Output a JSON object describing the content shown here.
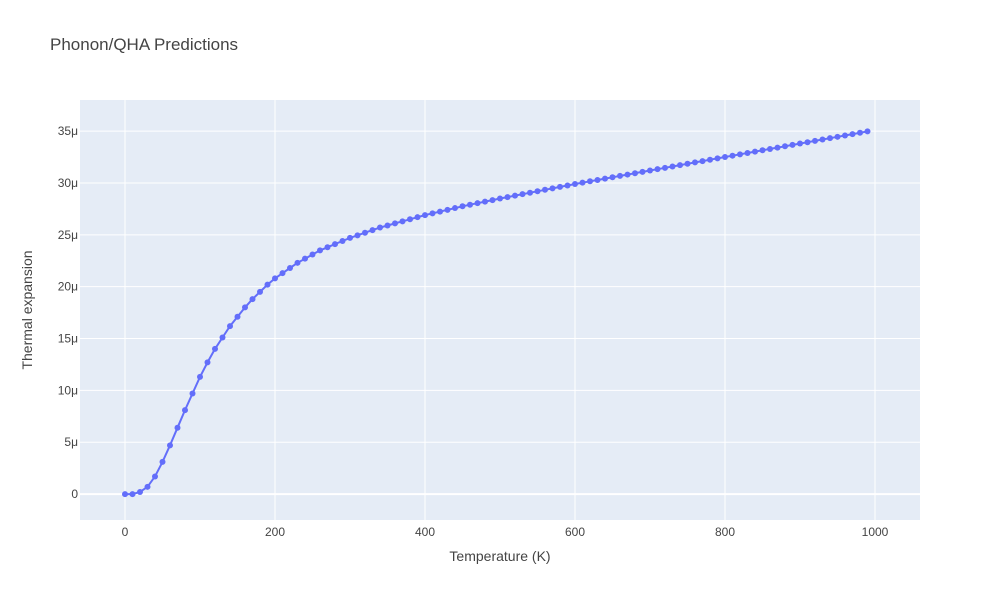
{
  "chart_data": {
    "type": "line",
    "title": "Phonon/QHA Predictions",
    "xlabel": "Temperature (K)",
    "ylabel": "Thermal expansion",
    "xlim": [
      -60,
      1060
    ],
    "ylim": [
      -2.5,
      38
    ],
    "y_unit_suffix": "μ",
    "grid": true,
    "legend": "none",
    "x_ticks": [
      0,
      200,
      400,
      600,
      800,
      1000
    ],
    "x_tick_labels": [
      "0",
      "200",
      "400",
      "600",
      "800",
      "1000"
    ],
    "y_ticks": [
      0,
      5,
      10,
      15,
      20,
      25,
      30,
      35
    ],
    "y_tick_labels": [
      "0",
      "5μ",
      "10μ",
      "15μ",
      "20μ",
      "25μ",
      "30μ",
      "35μ"
    ],
    "colors": {
      "series": "#636efa",
      "plot_bg": "#e5ecf6",
      "grid": "#ffffff",
      "text": "#444444"
    },
    "series": [
      {
        "x": [
          0,
          10,
          20,
          30,
          40,
          50,
          60,
          70,
          80,
          90,
          100,
          110,
          120,
          130,
          140,
          150,
          160,
          170,
          180,
          190,
          200,
          210,
          220,
          230,
          240,
          250,
          260,
          270,
          280,
          290,
          300,
          310,
          320,
          330,
          340,
          350,
          360,
          370,
          380,
          390,
          400,
          410,
          420,
          430,
          440,
          450,
          460,
          470,
          480,
          490,
          500,
          510,
          520,
          530,
          540,
          550,
          560,
          570,
          580,
          590,
          600,
          610,
          620,
          630,
          640,
          650,
          660,
          670,
          680,
          690,
          700,
          710,
          720,
          730,
          740,
          750,
          760,
          770,
          780,
          790,
          800,
          810,
          820,
          830,
          840,
          850,
          860,
          870,
          880,
          890,
          900,
          910,
          920,
          930,
          940,
          950,
          960,
          970,
          980,
          990
        ],
        "y": [
          0.0,
          0.0,
          0.2,
          0.7,
          1.7,
          3.1,
          4.7,
          6.4,
          8.1,
          9.7,
          11.3,
          12.7,
          14.0,
          15.1,
          16.2,
          17.1,
          18.0,
          18.8,
          19.5,
          20.2,
          20.8,
          21.3,
          21.8,
          22.3,
          22.7,
          23.1,
          23.5,
          23.8,
          24.1,
          24.4,
          24.7,
          24.95,
          25.2,
          25.45,
          25.7,
          25.9,
          26.1,
          26.3,
          26.5,
          26.7,
          26.9,
          27.07,
          27.24,
          27.41,
          27.58,
          27.75,
          27.9,
          28.05,
          28.2,
          28.35,
          28.5,
          28.64,
          28.78,
          28.92,
          29.06,
          29.2,
          29.34,
          29.48,
          29.62,
          29.76,
          29.9,
          30.03,
          30.16,
          30.29,
          30.42,
          30.55,
          30.68,
          30.81,
          30.94,
          31.07,
          31.2,
          31.33,
          31.46,
          31.59,
          31.72,
          31.85,
          31.98,
          32.11,
          32.24,
          32.37,
          32.5,
          32.63,
          32.76,
          32.89,
          33.02,
          33.15,
          33.28,
          33.41,
          33.54,
          33.67,
          33.8,
          33.93,
          34.06,
          34.19,
          34.32,
          34.45,
          34.58,
          34.71,
          34.84,
          34.97
        ]
      }
    ]
  }
}
